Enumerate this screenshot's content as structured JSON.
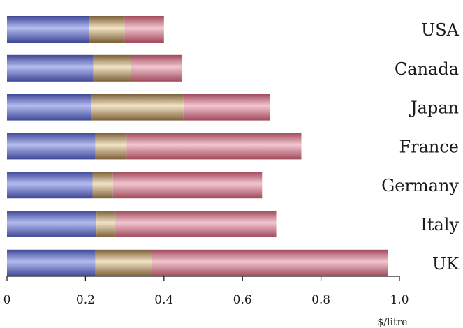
{
  "chart_data": {
    "type": "bar",
    "orientation": "horizontal",
    "stacked": true,
    "categories": [
      "USA",
      "Canada",
      "Japan",
      "France",
      "Germany",
      "Italy",
      "UK"
    ],
    "series": [
      {
        "color": "#5a63b8",
        "values": [
          0.21,
          0.22,
          0.215,
          0.225,
          0.218,
          0.228,
          0.225
        ]
      },
      {
        "color": "#a88c60",
        "values": [
          0.09,
          0.095,
          0.235,
          0.08,
          0.052,
          0.048,
          0.145
        ]
      },
      {
        "color": "#c06878",
        "values": [
          0.1,
          0.13,
          0.22,
          0.445,
          0.38,
          0.41,
          0.6
        ]
      }
    ],
    "xlim": [
      0,
      1.0
    ],
    "xticks": [
      "0",
      "0.2",
      "0.4",
      "0.6",
      "0.8",
      "1.0"
    ],
    "xlabel": "$/litre",
    "ylabel": "",
    "title": "",
    "legend": "none",
    "grid": false
  }
}
